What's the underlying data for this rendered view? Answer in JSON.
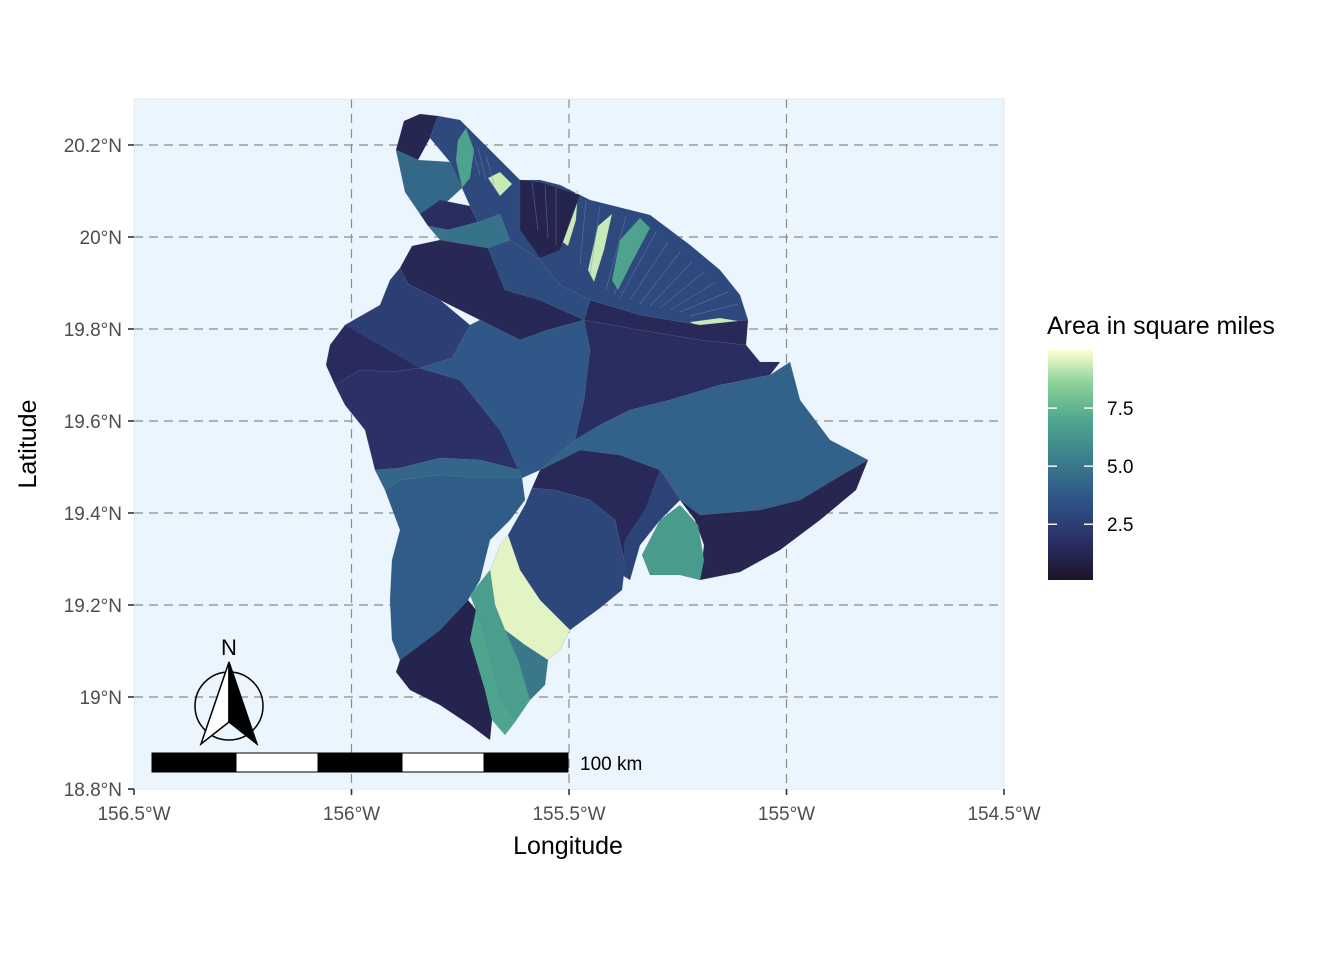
{
  "map": {
    "xlabel": "Longitude",
    "ylabel": "Latitude",
    "x_ticks": [
      {
        "value": -156.5,
        "label": "156.5°W"
      },
      {
        "value": -156.0,
        "label": "156°W"
      },
      {
        "value": -155.5,
        "label": "155.5°W"
      },
      {
        "value": -155.0,
        "label": "155°W"
      },
      {
        "value": -154.5,
        "label": "154.5°W"
      }
    ],
    "y_ticks": [
      {
        "value": 18.8,
        "label": "18.8°N"
      },
      {
        "value": 19.0,
        "label": "19°N"
      },
      {
        "value": 19.2,
        "label": "19.2°N"
      },
      {
        "value": 19.4,
        "label": "19.4°N"
      },
      {
        "value": 19.6,
        "label": "19.6°N"
      },
      {
        "value": 19.8,
        "label": "19.8°N"
      },
      {
        "value": 20.0,
        "label": "20°N"
      },
      {
        "value": 20.2,
        "label": "20.2°N"
      }
    ],
    "xlim": [
      -156.5,
      -154.5
    ],
    "ylim": [
      18.8,
      20.3
    ],
    "background_color": "#eaf5fd",
    "grid": true
  },
  "legend": {
    "title": "Area in square miles",
    "ticks": [
      {
        "value": 2.5,
        "label": "2.5"
      },
      {
        "value": 5.0,
        "label": "5.0"
      },
      {
        "value": 7.5,
        "label": "7.5"
      }
    ],
    "range": [
      0.1,
      10.0
    ],
    "palette": [
      "#1d1428",
      "#2b2f66",
      "#2e5587",
      "#3b7d8c",
      "#4fa88d",
      "#8fd39a",
      "#fdffd2"
    ]
  },
  "scale_bar": {
    "label": "100 km"
  },
  "north_arrow": {
    "label": "N"
  },
  "basins": [
    {
      "id": "kohala-tip",
      "area": 1.2
    },
    {
      "id": "kohala-west",
      "area": 4.2
    },
    {
      "id": "kohala-mid",
      "area": 1.6
    },
    {
      "id": "kohala-ridge",
      "area": 4.6
    },
    {
      "id": "kohala-a",
      "area": 6.5
    },
    {
      "id": "kohala-b",
      "area": 9.2
    },
    {
      "id": "kohala-c",
      "area": 2.9
    },
    {
      "id": "hamakua-inner",
      "area": 3.0
    },
    {
      "id": "waimea",
      "area": 1.3
    },
    {
      "id": "hamakua-gulches",
      "area": 1.1
    },
    {
      "id": "kawaihae",
      "area": 2.4
    },
    {
      "id": "west-thin",
      "area": 1.5
    },
    {
      "id": "kona-north",
      "area": 1.8
    },
    {
      "id": "central",
      "area": 3.5
    },
    {
      "id": "hilo-north",
      "area": 1.6
    },
    {
      "id": "hilo-east",
      "area": 3.9
    },
    {
      "id": "kona-strip",
      "area": 4.1
    },
    {
      "id": "kona-south",
      "area": 3.7
    },
    {
      "id": "kilauea",
      "area": 1.4
    },
    {
      "id": "puna",
      "area": 1.2
    },
    {
      "id": "kau-central",
      "area": 2.8
    },
    {
      "id": "kau-thin",
      "area": 2.6
    },
    {
      "id": "kau-green",
      "area": 6.2
    },
    {
      "id": "kau-yellow",
      "area": 9.6
    },
    {
      "id": "kau-teal",
      "area": 6.3
    },
    {
      "id": "kau-blue",
      "area": 4.8
    },
    {
      "id": "southwest",
      "area": 1.1
    },
    {
      "id": "south-point",
      "area": 6.6
    },
    {
      "id": "coast-thin",
      "area": 1.4
    }
  ]
}
